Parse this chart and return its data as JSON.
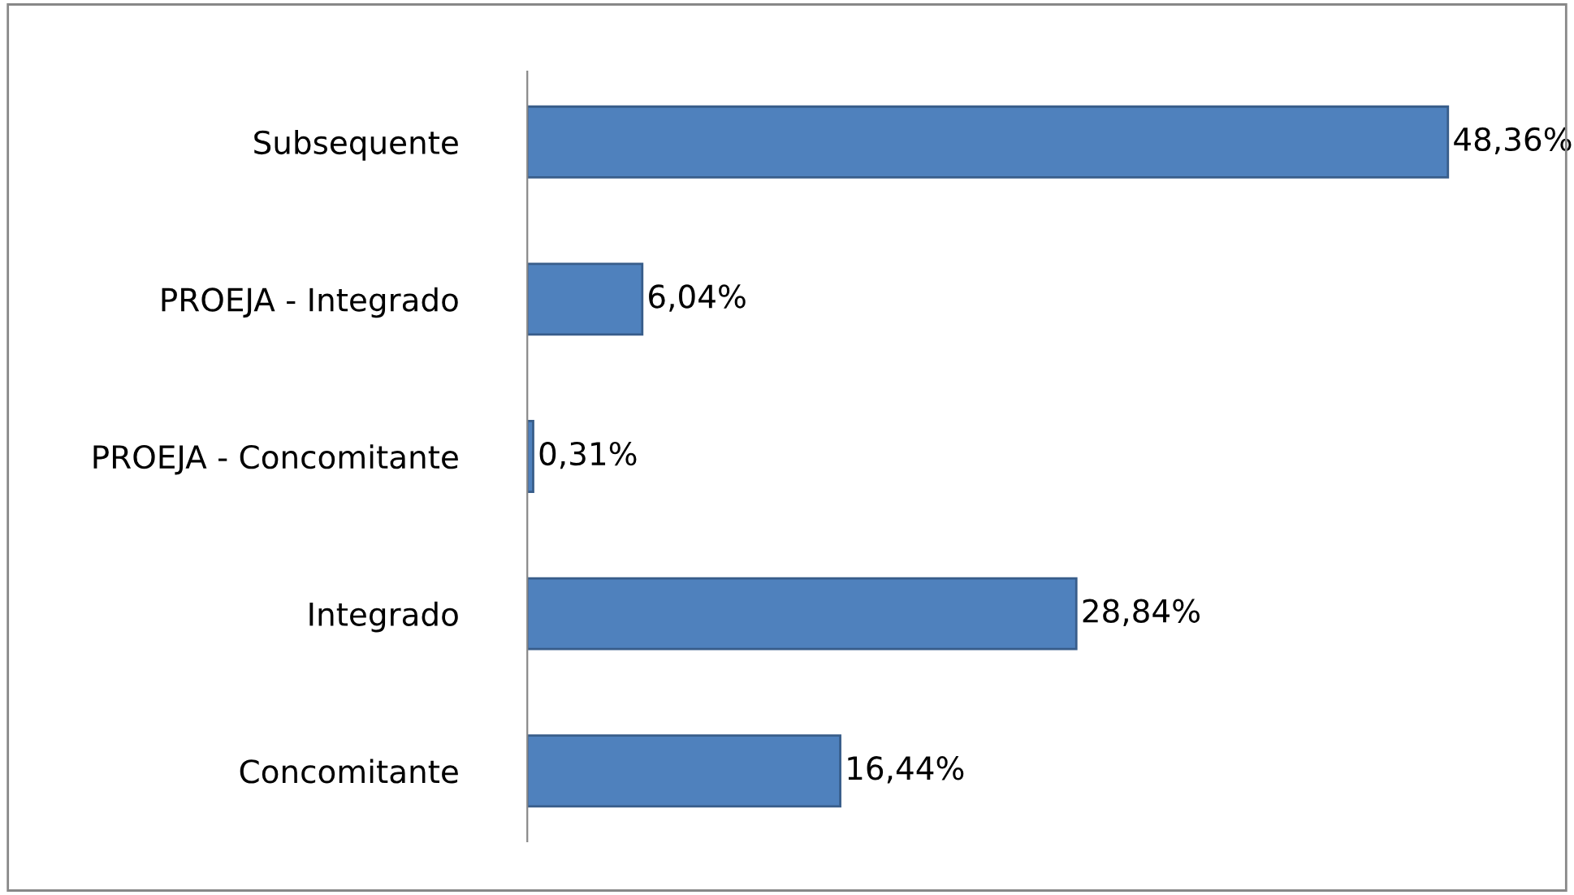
{
  "chart_data": {
    "type": "bar",
    "orientation": "horizontal",
    "categories": [
      "Subsequente",
      "PROEJA - Integrado",
      "PROEJA - Concomitante",
      "Integrado",
      "Concomitante"
    ],
    "values": [
      48.36,
      6.04,
      0.31,
      28.84,
      16.44
    ],
    "value_labels": [
      "48,36%",
      "6,04%",
      "0,31%",
      "28,84%",
      "16,44%"
    ],
    "color": "#4f81bd",
    "grid": false,
    "legend": false
  }
}
